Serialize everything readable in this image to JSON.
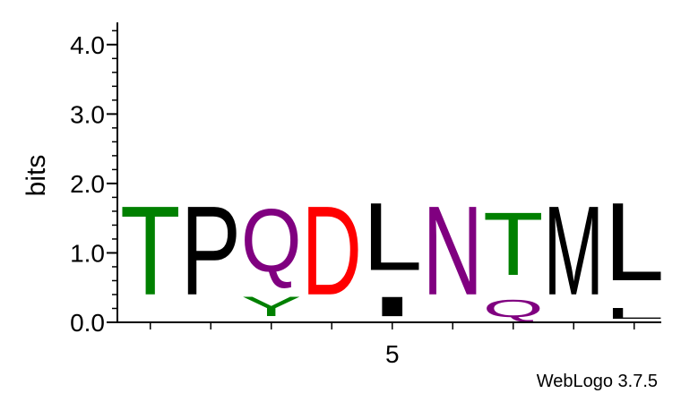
{
  "chart_data": {
    "type": "sequence-logo",
    "ylabel": "bits",
    "ylim": [
      0,
      4.32
    ],
    "yticks_major": [
      {
        "value": 0.0,
        "label": "0.0"
      },
      {
        "value": 1.0,
        "label": "1.0"
      },
      {
        "value": 2.0,
        "label": "2.0"
      },
      {
        "value": 3.0,
        "label": "3.0"
      },
      {
        "value": 4.0,
        "label": "4.0"
      }
    ],
    "yticks_minor_step": 0.2,
    "x_positions": [
      1,
      2,
      3,
      4,
      5,
      6,
      7,
      8,
      9
    ],
    "xticks_labeled": [
      {
        "position": 5,
        "label": "5"
      }
    ],
    "positions": [
      {
        "pos": 1,
        "stack": [
          {
            "letter": "T",
            "height": 2.05,
            "color": "#008000"
          }
        ]
      },
      {
        "pos": 2,
        "stack": [
          {
            "letter": "P",
            "height": 2.05,
            "color": "#000000"
          }
        ]
      },
      {
        "pos": 3,
        "stack": [
          {
            "letter": "Y",
            "height": 0.45,
            "color": "#008000"
          },
          {
            "letter": "Q",
            "height": 1.45,
            "color": "#800080"
          }
        ]
      },
      {
        "pos": 4,
        "stack": [
          {
            "letter": "D",
            "height": 2.05,
            "color": "#ff0000"
          }
        ]
      },
      {
        "pos": 5,
        "stack": [
          {
            "letter": "I",
            "height": 0.45,
            "color": "#000000"
          },
          {
            "letter": "L",
            "height": 1.55,
            "color": "#000000"
          }
        ]
      },
      {
        "pos": 6,
        "stack": [
          {
            "letter": "N",
            "height": 2.05,
            "color": "#800080"
          }
        ]
      },
      {
        "pos": 7,
        "stack": [
          {
            "letter": "Q",
            "height": 0.4,
            "color": "#800080"
          },
          {
            "letter": "T",
            "height": 1.45,
            "color": "#008000"
          }
        ]
      },
      {
        "pos": 8,
        "stack": [
          {
            "letter": "M",
            "height": 2.05,
            "color": "#000000"
          }
        ]
      },
      {
        "pos": 9,
        "stack": [
          {
            "letter": "L",
            "height": 0.25,
            "color": "#000000"
          },
          {
            "letter": "L",
            "height": 1.8,
            "color": "#000000"
          }
        ]
      }
    ]
  },
  "footer": {
    "credit": "WebLogo 3.7.5"
  }
}
